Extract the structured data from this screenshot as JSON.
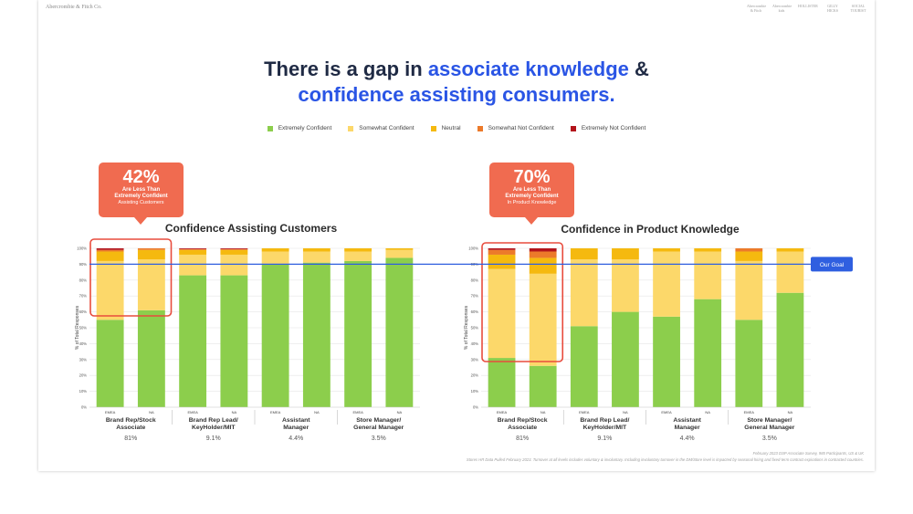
{
  "header": {
    "brand": "Abercrombie & Fitch Co.",
    "logos": [
      "Abercrombie & Fitch",
      "Abercrombie kids",
      "HOLLISTER",
      "GILLY HICKS",
      "SOCIAL TOURIST"
    ]
  },
  "title": {
    "line1_plain": "There is a gap in ",
    "line1_highlight": "associate knowledge",
    "line1_end": " &",
    "line2_highlight": "confidence assisting consumers."
  },
  "colors": {
    "Extremely Confident": "#8cce4c",
    "Somewhat Confident": "#fcd86a",
    "Neutral": "#f5b90f",
    "Somewhat Not Confident": "#ec7a2a",
    "Extremely Not Confident": "#b3141b",
    "goal_line": "#2f5fe0",
    "highlight_box": "#e84c3d"
  },
  "goal_label": "Our Goal",
  "callouts": [
    {
      "value": "42%",
      "line1": "Are Less Than",
      "line2": "Extremely Confident",
      "line3": "Assisting Customers"
    },
    {
      "value": "70%",
      "line1": "Are Less Than",
      "line2": "Extremely Confident",
      "line3": "In Product Knowledge"
    }
  ],
  "chart_data": [
    {
      "type": "bar",
      "stacked": true,
      "title": "Confidence Assisting Customers",
      "ylabel": "% of Total Responses",
      "ylim": [
        0,
        100
      ],
      "yticks": [
        "0%",
        "10%",
        "20%",
        "30%",
        "40%",
        "50%",
        "60%",
        "70%",
        "80%",
        "90%",
        "100%"
      ],
      "goal": 90,
      "categories": [
        "EMEA",
        "NA",
        "EMEA",
        "NA",
        "EMEA",
        "NA",
        "EMEA",
        "NA"
      ],
      "groups": [
        {
          "name": "Brand Rep/Stock Associate",
          "pct": "81%"
        },
        {
          "name": "Brand Rep Lead/ KeyHolder/MIT",
          "pct": "9.1%"
        },
        {
          "name": "Assistant Manager",
          "pct": "4.4%"
        },
        {
          "name": "Store Manager/ General Manager",
          "pct": "3.5%"
        }
      ],
      "series": [
        {
          "name": "Extremely Confident",
          "values": [
            55,
            61,
            83,
            83,
            90,
            91,
            92,
            94
          ]
        },
        {
          "name": "Somewhat Confident",
          "values": [
            37,
            32,
            13,
            13,
            8,
            7,
            6,
            5
          ]
        },
        {
          "name": "Neutral",
          "values": [
            6,
            6,
            3,
            3,
            2,
            2,
            2,
            1
          ]
        },
        {
          "name": "Somewhat Not Confident",
          "values": [
            1,
            1,
            0.5,
            0.5,
            0,
            0,
            0,
            0
          ]
        },
        {
          "name": "Extremely Not Confident",
          "values": [
            1,
            0,
            0.5,
            0.5,
            0,
            0,
            0,
            0
          ]
        }
      ]
    },
    {
      "type": "bar",
      "stacked": true,
      "title": "Confidence in Product Knowledge",
      "ylabel": "% of Total Responses",
      "ylim": [
        0,
        100
      ],
      "yticks": [
        "0%",
        "10%",
        "20%",
        "30%",
        "40%",
        "50%",
        "60%",
        "70%",
        "80%",
        "90%",
        "100%"
      ],
      "goal": 90,
      "categories": [
        "EMEA",
        "NA",
        "EMEA",
        "NA",
        "EMEA",
        "NA",
        "EMEA",
        "NA"
      ],
      "groups": [
        {
          "name": "Brand Rep/Stock Associate",
          "pct": "81%"
        },
        {
          "name": "Brand Rep Lead/ KeyHolder/MIT",
          "pct": "9.1%"
        },
        {
          "name": "Assistant Manager",
          "pct": "4.4%"
        },
        {
          "name": "Store Manager/ General Manager",
          "pct": "3.5%"
        }
      ],
      "series": [
        {
          "name": "Extremely Confident",
          "values": [
            31,
            26,
            51,
            60,
            57,
            68,
            55,
            72
          ]
        },
        {
          "name": "Somewhat Confident",
          "values": [
            56,
            58,
            42,
            33,
            41,
            30,
            37,
            26
          ]
        },
        {
          "name": "Neutral",
          "values": [
            9,
            10,
            7,
            7,
            2,
            2,
            6,
            2
          ]
        },
        {
          "name": "Somewhat Not Confident",
          "values": [
            3,
            4,
            0,
            0,
            0,
            0,
            2,
            0
          ]
        },
        {
          "name": "Extremely Not Confident",
          "values": [
            1,
            2,
            0,
            0,
            0,
            0,
            0,
            0
          ]
        }
      ]
    }
  ],
  "footnotes": {
    "line1": "February 2023 DSP Associate Survey, 985 Participants, US & UK",
    "line2": "Stores HR Data Pulled February 2023. Turnover at all levels includes voluntary & involuntary. Including involuntary turnover in the DM/Store level is impacted by seasonal hiring and fixed-term contract expirations in contracted countries."
  }
}
